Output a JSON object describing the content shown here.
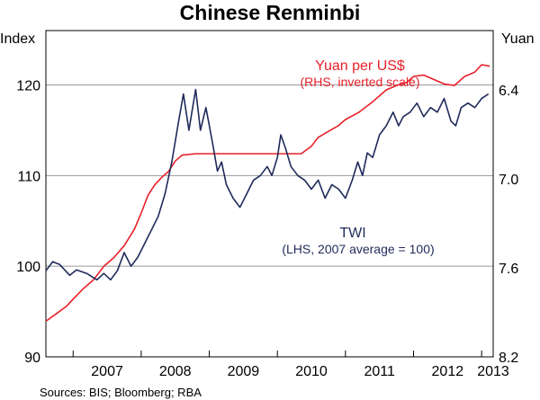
{
  "chart_data": {
    "type": "line",
    "title": "Chinese Renminbi",
    "left_axis": {
      "unit_label": "Index",
      "ticks": [
        "120",
        "110",
        "100",
        "90"
      ],
      "tick_values": [
        120,
        110,
        100,
        90
      ],
      "range": [
        90,
        126
      ]
    },
    "right_axis": {
      "unit_label": "Yuan",
      "ticks": [
        "6.4",
        "7.0",
        "7.6",
        "8.2"
      ],
      "tick_values": [
        6.4,
        7.0,
        7.6,
        8.2
      ],
      "range": [
        6.0,
        8.2
      ],
      "inverted": true
    },
    "x_axis": {
      "labels": [
        "2007",
        "2008",
        "2009",
        "2010",
        "2011",
        "2012",
        "2013"
      ],
      "range": [
        2006.6,
        2013.17
      ]
    },
    "gridlines": true,
    "series": [
      {
        "name": "Yuan per US$",
        "axis": "right",
        "color": "#e8202a",
        "label_lines": [
          "Yuan per US$",
          "(RHS, inverted scale)"
        ],
        "points": [
          [
            2006.6,
            7.96
          ],
          [
            2006.75,
            7.91
          ],
          [
            2006.9,
            7.86
          ],
          [
            2007.0,
            7.81
          ],
          [
            2007.15,
            7.74
          ],
          [
            2007.3,
            7.68
          ],
          [
            2007.45,
            7.59
          ],
          [
            2007.6,
            7.53
          ],
          [
            2007.75,
            7.45
          ],
          [
            2007.9,
            7.34
          ],
          [
            2008.0,
            7.23
          ],
          [
            2008.1,
            7.11
          ],
          [
            2008.2,
            7.04
          ],
          [
            2008.3,
            6.99
          ],
          [
            2008.4,
            6.95
          ],
          [
            2008.5,
            6.88
          ],
          [
            2008.6,
            6.84
          ],
          [
            2008.8,
            6.83
          ],
          [
            2009.0,
            6.83
          ],
          [
            2009.3,
            6.83
          ],
          [
            2009.6,
            6.83
          ],
          [
            2009.9,
            6.83
          ],
          [
            2010.1,
            6.83
          ],
          [
            2010.35,
            6.83
          ],
          [
            2010.5,
            6.78
          ],
          [
            2010.6,
            6.72
          ],
          [
            2010.75,
            6.68
          ],
          [
            2010.9,
            6.64
          ],
          [
            2011.0,
            6.6
          ],
          [
            2011.2,
            6.55
          ],
          [
            2011.4,
            6.48
          ],
          [
            2011.6,
            6.4
          ],
          [
            2011.75,
            6.37
          ],
          [
            2011.9,
            6.35
          ],
          [
            2012.0,
            6.31
          ],
          [
            2012.15,
            6.3
          ],
          [
            2012.3,
            6.33
          ],
          [
            2012.45,
            6.36
          ],
          [
            2012.6,
            6.37
          ],
          [
            2012.75,
            6.31
          ],
          [
            2012.9,
            6.28
          ],
          [
            2013.0,
            6.23
          ],
          [
            2013.12,
            6.24
          ]
        ]
      },
      {
        "name": "TWI",
        "axis": "left",
        "color": "#1f2a5a",
        "label_lines": [
          "TWI",
          "(LHS, 2007 average = 100)"
        ],
        "points": [
          [
            2006.6,
            99.5
          ],
          [
            2006.7,
            100.5
          ],
          [
            2006.8,
            100.2
          ],
          [
            2006.95,
            99.0
          ],
          [
            2007.05,
            99.6
          ],
          [
            2007.2,
            99.2
          ],
          [
            2007.35,
            98.5
          ],
          [
            2007.45,
            99.2
          ],
          [
            2007.55,
            98.5
          ],
          [
            2007.65,
            99.5
          ],
          [
            2007.75,
            101.5
          ],
          [
            2007.85,
            100.0
          ],
          [
            2007.95,
            101.0
          ],
          [
            2008.05,
            102.5
          ],
          [
            2008.15,
            104.0
          ],
          [
            2008.25,
            105.5
          ],
          [
            2008.35,
            108.0
          ],
          [
            2008.45,
            111.5
          ],
          [
            2008.55,
            116.0
          ],
          [
            2008.62,
            119.0
          ],
          [
            2008.7,
            115.0
          ],
          [
            2008.8,
            119.5
          ],
          [
            2008.87,
            115.0
          ],
          [
            2008.95,
            117.5
          ],
          [
            2009.0,
            115.5
          ],
          [
            2009.05,
            113.5
          ],
          [
            2009.12,
            110.5
          ],
          [
            2009.18,
            111.5
          ],
          [
            2009.25,
            109.0
          ],
          [
            2009.35,
            107.5
          ],
          [
            2009.45,
            106.5
          ],
          [
            2009.55,
            108.0
          ],
          [
            2009.65,
            109.5
          ],
          [
            2009.75,
            110.0
          ],
          [
            2009.85,
            111.0
          ],
          [
            2009.92,
            110.0
          ],
          [
            2010.0,
            112.0
          ],
          [
            2010.05,
            114.5
          ],
          [
            2010.12,
            113.0
          ],
          [
            2010.2,
            111.0
          ],
          [
            2010.3,
            110.0
          ],
          [
            2010.4,
            109.5
          ],
          [
            2010.5,
            108.5
          ],
          [
            2010.6,
            109.5
          ],
          [
            2010.7,
            107.5
          ],
          [
            2010.8,
            109.0
          ],
          [
            2010.9,
            108.5
          ],
          [
            2011.0,
            107.5
          ],
          [
            2011.1,
            109.5
          ],
          [
            2011.18,
            111.5
          ],
          [
            2011.25,
            110.0
          ],
          [
            2011.32,
            112.5
          ],
          [
            2011.4,
            112.0
          ],
          [
            2011.5,
            114.5
          ],
          [
            2011.6,
            115.5
          ],
          [
            2011.7,
            117.0
          ],
          [
            2011.78,
            115.5
          ],
          [
            2011.85,
            116.5
          ],
          [
            2011.95,
            117.0
          ],
          [
            2012.05,
            118.0
          ],
          [
            2012.15,
            116.5
          ],
          [
            2012.25,
            117.5
          ],
          [
            2012.35,
            117.0
          ],
          [
            2012.45,
            118.5
          ],
          [
            2012.55,
            116.0
          ],
          [
            2012.62,
            115.5
          ],
          [
            2012.7,
            117.5
          ],
          [
            2012.8,
            118.0
          ],
          [
            2012.9,
            117.5
          ],
          [
            2013.0,
            118.5
          ],
          [
            2013.1,
            119.0
          ]
        ]
      }
    ],
    "source": "Sources: BIS; Bloomberg; RBA"
  }
}
